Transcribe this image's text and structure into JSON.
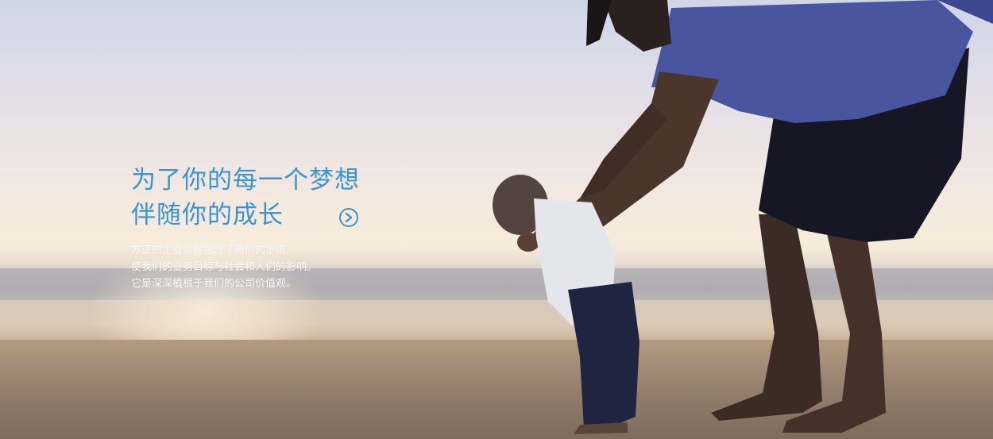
{
  "hero": {
    "headline": [
      "为了你的每一个梦想",
      "伴随你的成长"
    ],
    "paragraph": [
      "方正的企业公民包含了我们的承诺,",
      "使我们的业务目标与社会和人们的影响。",
      "它是深深植根于我们的公司价值观。"
    ],
    "arrow_icon": "chevron-right-circle-icon",
    "accent_color": "#3a94d2"
  }
}
